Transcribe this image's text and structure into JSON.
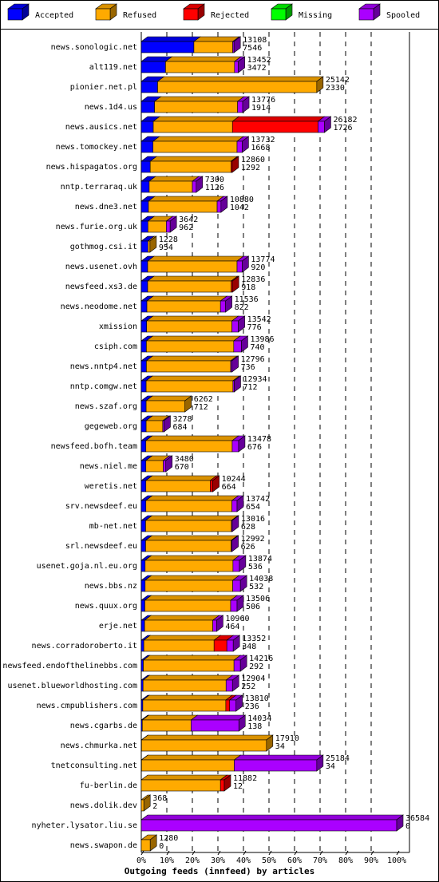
{
  "chart_data": {
    "type": "bar",
    "orientation": "horizontal",
    "stacked": true,
    "x_label": "Outgoing feeds (innfeed) by articles",
    "categories": [
      "news.sonologic.net",
      "alt119.net",
      "pionier.net.pl",
      "news.1d4.us",
      "news.ausics.net",
      "news.tomockey.net",
      "news.hispagatos.org",
      "nntp.terraraq.uk",
      "news.dne3.net",
      "news.furie.org.uk",
      "gothmog.csi.it",
      "news.usenet.ovh",
      "newsfeed.xs3.de",
      "news.neodome.net",
      "xmission",
      "csiph.com",
      "news.nntp4.net",
      "nntp.comgw.net",
      "news.szaf.org",
      "gegeweb.org",
      "newsfeed.bofh.team",
      "news.niel.me",
      "weretis.net",
      "srv.newsdeef.eu",
      "mb-net.net",
      "srl.newsdeef.eu",
      "usenet.goja.nl.eu.org",
      "news.bbs.nz",
      "news.quux.org",
      "erje.net",
      "news.corradoroberto.it",
      "newsfeed.endofthelinebbs.com",
      "usenet.blueworldhosting.com",
      "news.cmpublishers.com",
      "news.cgarbs.de",
      "news.chmurka.net",
      "tnetconsulting.net",
      "fu-berlin.de",
      "news.dolik.dev",
      "nyheter.lysator.liu.se",
      "news.swapon.de"
    ],
    "series": [
      {
        "name": "Accepted",
        "color": "#0000ff",
        "values": [
          20.6,
          9.5,
          6.4,
          5.2,
          4.7,
          4.6,
          3.5,
          3.1,
          2.8,
          2.6,
          2.6,
          2.5,
          2.5,
          2.2,
          2.1,
          2,
          2,
          1.9,
          1.9,
          1.9,
          1.8,
          1.8,
          1.8,
          1.8,
          1.7,
          1.7,
          1.5,
          1.5,
          1.4,
          1.3,
          1,
          0.8,
          0.7,
          0.6,
          0.4,
          0.1,
          0.1,
          0,
          0,
          0,
          0
        ]
      },
      {
        "name": "Refused",
        "color": "#ffaa00",
        "values": [
          15.2,
          27,
          62.3,
          32.5,
          31,
          32.9,
          31.6,
          16.9,
          26.9,
          7.2,
          0.8,
          35,
          32.7,
          28.8,
          33.4,
          34.2,
          33,
          34,
          15.2,
          6.5,
          33.8,
          6.8,
          25.2,
          33.7,
          33.6,
          33.5,
          34.4,
          34.3,
          33.6,
          26.7,
          27.5,
          35.5,
          32.5,
          32.5,
          19.1,
          48.9,
          36.3,
          31,
          1,
          0,
          3.5
        ]
      },
      {
        "name": "Rejected",
        "color": "#ff0000",
        "values": [
          0,
          0,
          0,
          0,
          33.5,
          0,
          0.5,
          0,
          0,
          0,
          0,
          0,
          0.5,
          0,
          0,
          0,
          0,
          0,
          0,
          0,
          0,
          0,
          1,
          0,
          0,
          0,
          0,
          0,
          0,
          0,
          5,
          0,
          0,
          1.5,
          0,
          0,
          0,
          1.5,
          0,
          0,
          0
        ]
      },
      {
        "name": "Missing",
        "color": "#00ff00",
        "values": [
          0,
          0,
          0,
          0,
          0,
          0,
          0,
          0,
          0,
          0,
          0,
          0,
          0,
          0,
          0,
          0,
          0,
          0,
          0,
          0,
          0,
          0,
          0,
          0,
          0,
          0,
          0,
          0,
          0,
          0,
          0,
          0,
          0,
          0,
          0,
          0,
          0,
          0,
          0,
          0,
          0
        ]
      },
      {
        "name": "Spooled",
        "color": "#aa00ff",
        "values": [
          0.5,
          1.5,
          0,
          2,
          2.5,
          2,
          0,
          1.5,
          1.5,
          1.5,
          0,
          2,
          0,
          2,
          2.5,
          3,
          0.5,
          0.5,
          0,
          0.5,
          2.5,
          1,
          0,
          2,
          0.3,
          0.3,
          2.5,
          3,
          2.5,
          1.5,
          2.5,
          2.5,
          2.5,
          2.5,
          18.7,
          0,
          32.3,
          0,
          0,
          100,
          0
        ]
      }
    ],
    "offered": [
      13108,
      13452,
      25142,
      13776,
      26182,
      13732,
      12860,
      7300,
      10880,
      3642,
      1228,
      13774,
      12836,
      11536,
      13542,
      13986,
      12796,
      12934,
      6262,
      3278,
      13478,
      3480,
      10244,
      13742,
      13016,
      12992,
      13874,
      14038,
      13506,
      10960,
      13352,
      14216,
      12904,
      13810,
      14034,
      17910,
      25184,
      11882,
      368,
      36584,
      1280
    ],
    "accepted": [
      7546,
      3472,
      2330,
      1914,
      1726,
      1668,
      1292,
      1126,
      1042,
      962,
      954,
      920,
      918,
      822,
      776,
      740,
      736,
      712,
      712,
      684,
      676,
      670,
      664,
      654,
      628,
      626,
      536,
      532,
      506,
      464,
      348,
      292,
      252,
      236,
      138,
      34,
      34,
      12,
      2,
      0,
      0
    ],
    "xlim": [
      0,
      100
    ],
    "xticks": [
      {
        "value": 0,
        "label": "0%"
      },
      {
        "value": 10,
        "label": "10%"
      },
      {
        "value": 20,
        "label": "20%"
      },
      {
        "value": 30,
        "label": "30%"
      },
      {
        "value": 40,
        "label": "40%"
      },
      {
        "value": 50,
        "label": "50%"
      },
      {
        "value": 60,
        "label": "60%"
      },
      {
        "value": 70,
        "label": "70%"
      },
      {
        "value": 80,
        "label": "80%"
      },
      {
        "value": 90,
        "label": "90%"
      },
      {
        "value": 100,
        "label": "100%"
      }
    ],
    "grid": true,
    "legend": "top"
  }
}
